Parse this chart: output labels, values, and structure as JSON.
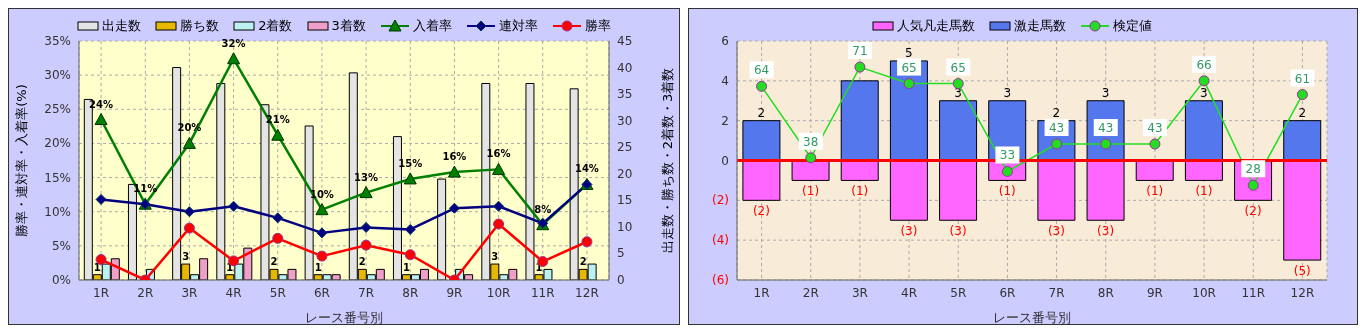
{
  "chart_data": [
    {
      "type": "bar",
      "xlabel": "レース番号別",
      "ylabel": "勝率・連対率・入着率(%)",
      "y2label": "出走数・勝ち数・2着数・3着数",
      "categories": [
        "1R",
        "2R",
        "3R",
        "4R",
        "5R",
        "6R",
        "7R",
        "8R",
        "9R",
        "10R",
        "11R",
        "12R"
      ],
      "series": [
        {
          "name": "出走数",
          "color": "#e4e4e4",
          "axis": "y2",
          "values": [
            34,
            18,
            40,
            37,
            33,
            29,
            39,
            27,
            19,
            37,
            37,
            36
          ]
        },
        {
          "name": "勝ち数",
          "color": "#e6b800",
          "axis": "y2",
          "values": [
            1,
            0,
            3,
            1,
            2,
            1,
            2,
            1,
            0,
            3,
            1,
            2
          ],
          "value_labels": [
            "1",
            null,
            "3",
            "1",
            "2",
            "1",
            "2",
            "1",
            null,
            "3",
            "1",
            "2"
          ]
        },
        {
          "name": "2着数",
          "color": "#bdf0f0",
          "axis": "y2",
          "values": [
            3,
            2,
            1,
            3,
            1,
            1,
            1,
            1,
            2,
            1,
            2,
            3
          ]
        },
        {
          "name": "3着数",
          "color": "#f0a0c8",
          "axis": "y2",
          "values": [
            4,
            0,
            4,
            6,
            2,
            1,
            2,
            2,
            1,
            2,
            0,
            0
          ]
        },
        {
          "name": "入着率",
          "type": "line",
          "color": "#008000",
          "marker": "triangle",
          "values": [
            23.5,
            11.1,
            20,
            32.4,
            21.2,
            10.3,
            12.8,
            14.8,
            15.8,
            16.2,
            8.1,
            14
          ],
          "value_labels": [
            "24%",
            "11%",
            "20%",
            "32%",
            "21%",
            "10%",
            "13%",
            "15%",
            "16%",
            "16%",
            "8%",
            "14%"
          ]
        },
        {
          "name": "連対率",
          "type": "line",
          "color": "#000080",
          "marker": "diamond",
          "values": [
            11.8,
            11.1,
            10,
            10.8,
            9.1,
            6.9,
            7.7,
            7.4,
            10.5,
            10.8,
            8.3,
            14
          ]
        },
        {
          "name": "勝率",
          "type": "line",
          "color": "#ff0000",
          "marker": "circle",
          "values": [
            3,
            0,
            7.6,
            2.8,
            6.1,
            3.5,
            5.1,
            3.7,
            0,
            8.2,
            2.7,
            5.6
          ]
        }
      ],
      "ylim": [
        0,
        35
      ],
      "yticks": [
        {
          "value": 0,
          "label": "0%"
        },
        {
          "value": 5,
          "label": "5%"
        },
        {
          "value": 10,
          "label": "10%"
        },
        {
          "value": 15,
          "label": "15%"
        },
        {
          "value": 20,
          "label": "20%"
        },
        {
          "value": 25,
          "label": "25%"
        },
        {
          "value": 30,
          "label": "30%"
        },
        {
          "value": 35,
          "label": "35%"
        }
      ],
      "y2lim": [
        0,
        45
      ],
      "y2ticks": [
        0,
        5,
        10,
        15,
        20,
        25,
        30,
        35,
        40,
        45
      ],
      "grid": true,
      "legend": "top",
      "line_style": "solid"
    },
    {
      "type": "bar",
      "xlabel": "レース番号別",
      "categories": [
        "1R",
        "2R",
        "3R",
        "4R",
        "5R",
        "6R",
        "7R",
        "8R",
        "9R",
        "10R",
        "11R",
        "12R"
      ],
      "stacked": true,
      "series": [
        {
          "name": "人気凡走馬数",
          "color": "#ff66ff",
          "values": [
            -2,
            -1,
            -1,
            -3,
            -3,
            -1,
            -3,
            -3,
            -1,
            -1,
            -2,
            -5
          ],
          "value_labels": [
            "(2)",
            "(1)",
            "(1)",
            "(3)",
            "(3)",
            "(1)",
            "(3)",
            "(3)",
            "(1)",
            "(1)",
            "(2)",
            "(5)"
          ]
        },
        {
          "name": "激走馬数",
          "color": "#5577ee",
          "values": [
            2,
            0,
            4,
            5,
            3,
            3,
            2,
            3,
            0,
            3,
            0,
            2
          ],
          "value_labels": [
            "2",
            null,
            null,
            "5",
            "3",
            "3",
            "2",
            "3",
            null,
            "3",
            null,
            "2"
          ]
        },
        {
          "name": "検定値",
          "type": "line",
          "color": "#22dd22",
          "marker": "circle",
          "axis": "y2",
          "values": [
            64,
            38,
            71,
            65,
            65,
            33,
            43,
            43,
            43,
            66,
            28,
            61
          ],
          "value_labels": [
            "64",
            "38",
            "71",
            "65",
            "65",
            "33",
            "43",
            "43",
            "43",
            "66",
            "28",
            "61"
          ]
        }
      ],
      "ylim": [
        -6,
        6
      ],
      "yticks": [
        {
          "value": -6,
          "label": "(6)"
        },
        {
          "value": -4,
          "label": "(4)"
        },
        {
          "value": -2,
          "label": "(2)"
        },
        0,
        2,
        4,
        6
      ],
      "y2lim": [
        -6.5,
        80.5
      ],
      "grid": true,
      "legend": "top",
      "line_style": "solid",
      "ref_lines": [
        {
          "axis": "y",
          "value": 0,
          "color": "#ff0000"
        }
      ]
    }
  ]
}
